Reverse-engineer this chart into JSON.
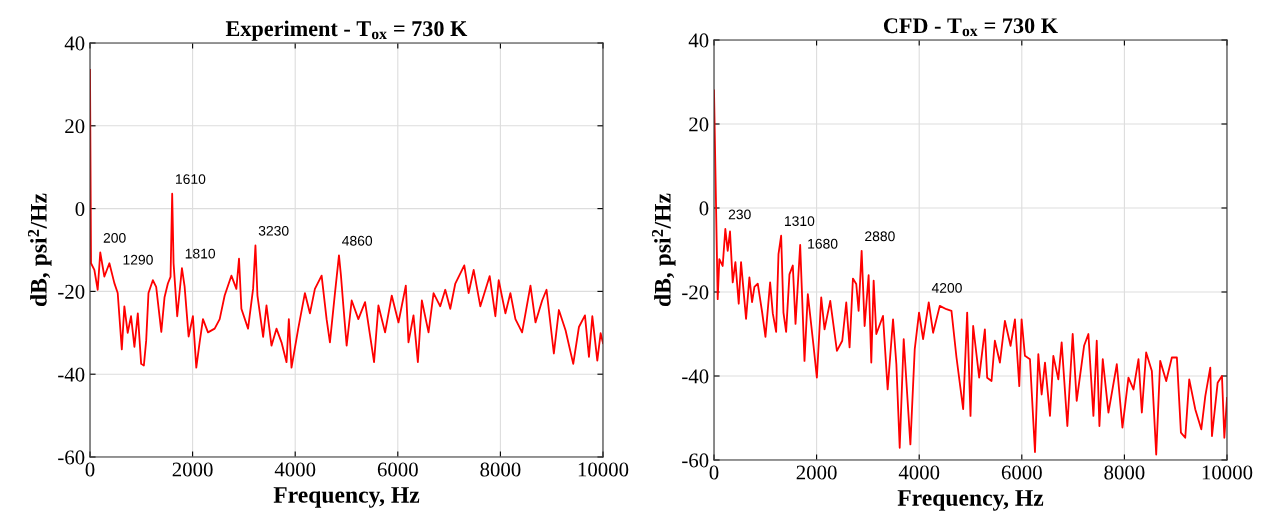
{
  "chart_data": [
    {
      "type": "line",
      "title": "Experiment - T$_{ox}$ = 730 K",
      "xlabel": "Frequency, Hz",
      "ylabel": "dB, psi$^{2}$/Hz",
      "x": [
        0,
        20,
        85,
        150,
        200,
        280,
        378,
        475,
        540,
        573,
        620,
        670,
        735,
        800,
        866,
        932,
        997,
        1050,
        1095,
        1140,
        1225,
        1290,
        1390,
        1453,
        1518,
        1570,
        1602,
        1629,
        1700,
        1792,
        1844,
        1922,
        2006,
        2072,
        2137,
        2202,
        2300,
        2430,
        2528,
        2625,
        2756,
        2853,
        2905,
        2951,
        3081,
        3179,
        3225,
        3264,
        3375,
        3440,
        3538,
        3635,
        3733,
        3831,
        3876,
        3928,
        4059,
        4189,
        4287,
        4384,
        4515,
        4612,
        4677,
        4775,
        4853,
        4892,
        4938,
        5003,
        5101,
        5231,
        5362,
        5459,
        5537,
        5622,
        5752,
        5882,
        6013,
        6156,
        6208,
        6306,
        6391,
        6469,
        6599,
        6697,
        6827,
        6925,
        7023,
        7121,
        7296,
        7381,
        7479,
        7609,
        7791,
        7902,
        7967,
        8098,
        8195,
        8293,
        8423,
        8586,
        8684,
        8814,
        8899,
        9042,
        9140,
        9270,
        9420,
        9531,
        9648,
        9726,
        9792,
        9889,
        9954,
        10000
      ],
      "series": [
        {
          "color": "#ff0000",
          "values": [
            33.5,
            -13.2,
            -14.8,
            -19.6,
            -10.6,
            -16.4,
            -13.2,
            -18,
            -20.4,
            -26,
            -34,
            -23.6,
            -30,
            -26,
            -33.4,
            -25.3,
            -37.5,
            -37.9,
            -31.9,
            -20.4,
            -17.3,
            -18.9,
            -29.8,
            -21.4,
            -18.1,
            -16.5,
            3.6,
            -13.2,
            -26,
            -14.4,
            -18.8,
            -30.9,
            -26,
            -38.4,
            -32.3,
            -26.7,
            -29.9,
            -29,
            -26.7,
            -21,
            -16.2,
            -19.4,
            -12.1,
            -24.2,
            -29,
            -19.4,
            -8.9,
            -21,
            -31,
            -23.4,
            -33.1,
            -29,
            -32.3,
            -37.1,
            -26.7,
            -38.4,
            -29,
            -20.4,
            -25.3,
            -19.4,
            -16.2,
            -26.7,
            -32.3,
            -20.4,
            -11.3,
            -16.2,
            -23.4,
            -33.1,
            -22.2,
            -26.7,
            -22.6,
            -30.6,
            -37.1,
            -23.4,
            -29.9,
            -21,
            -27.5,
            -18.6,
            -32.3,
            -25.8,
            -37.1,
            -22.2,
            -29.9,
            -20.4,
            -23.6,
            -19.6,
            -24.2,
            -18.1,
            -13.7,
            -20.4,
            -14.8,
            -23.6,
            -16.3,
            -26,
            -17.3,
            -25.3,
            -20.4,
            -26.7,
            -29.9,
            -18.6,
            -27.5,
            -22.2,
            -19.6,
            -35,
            -24.5,
            -29.4,
            -37.5,
            -28.6,
            -25.8,
            -35.8,
            -26,
            -36.7,
            -30.1,
            -32.5
          ]
        }
      ],
      "xlim": [
        0,
        10000
      ],
      "xticks": [
        0,
        2000,
        4000,
        6000,
        8000,
        10000
      ],
      "ylim": [
        -60,
        40
      ],
      "yticks": [
        -60,
        -40,
        -20,
        0,
        20,
        40
      ],
      "grid": true,
      "line_style": "solid",
      "marker": "none",
      "annotations": [
        {
          "text": "200",
          "x": 200,
          "y": -10.6
        },
        {
          "text": "1290",
          "x": 1290,
          "y": -18.9
        },
        {
          "text": "1610",
          "x": 1602,
          "y": 3.6
        },
        {
          "text": "1810",
          "x": 1792,
          "y": -14.4
        },
        {
          "text": "3230",
          "x": 3225,
          "y": -8.9
        },
        {
          "text": "4860",
          "x": 4853,
          "y": -11.3
        }
      ]
    },
    {
      "type": "line",
      "title": "CFD - T$_{ox}$ = 730 K",
      "xlabel": "Frequency, Hz",
      "ylabel": "dB, psi$^{2}$/Hz",
      "x": [
        0,
        72,
        104,
        169,
        221,
        267,
        312,
        365,
        417,
        482,
        527,
        625,
        690,
        742,
        788,
        853,
        937,
        1003,
        1094,
        1146,
        1211,
        1257,
        1309,
        1354,
        1406,
        1471,
        1536,
        1589,
        1680,
        1764,
        1829,
        1940,
        2005,
        2090,
        2155,
        2266,
        2396,
        2500,
        2578,
        2643,
        2708,
        2773,
        2819,
        2878,
        2936,
        3014,
        3066,
        3112,
        3164,
        3294,
        3385,
        3490,
        3555,
        3620,
        3698,
        3828,
        3913,
        3997,
        4076,
        4186,
        4271,
        4401,
        4531,
        4629,
        4727,
        4857,
        4935,
        5000,
        5052,
        5169,
        5280,
        5325,
        5410,
        5475,
        5573,
        5671,
        5781,
        5866,
        5951,
        5996,
        6061,
        6159,
        6257,
        6322,
        6387,
        6452,
        6549,
        6615,
        6712,
        6777,
        6888,
        6992,
        7070,
        7214,
        7298,
        7396,
        7461,
        7513,
        7578,
        7689,
        7852,
        7962,
        8079,
        8177,
        8275,
        8340,
        8424,
        8535,
        8620,
        8698,
        8815,
        8925,
        9023,
        9102,
        9186,
        9264,
        9381,
        9499,
        9577,
        9674,
        9707,
        9818,
        9902,
        9948,
        10000
      ],
      "series": [
        {
          "color": "#ff0000",
          "values": [
            28,
            -21.7,
            -12.2,
            -13.8,
            -5,
            -10.2,
            -5.6,
            -17.7,
            -12.9,
            -22.8,
            -12.9,
            -26.4,
            -16.5,
            -22.4,
            -18.8,
            -18,
            -24.7,
            -30.7,
            -17.7,
            -25.1,
            -29.5,
            -11,
            -6.6,
            -24.9,
            -29.5,
            -15.8,
            -13.7,
            -27.6,
            -8.8,
            -36.4,
            -20.5,
            -32.8,
            -40.4,
            -21.3,
            -28.9,
            -22.1,
            -34,
            -31.6,
            -22.5,
            -33.2,
            -16.8,
            -18.1,
            -24.5,
            -10.2,
            -28.1,
            -16,
            -36.8,
            -17.3,
            -30,
            -25.7,
            -43.2,
            -26.5,
            -37.2,
            -57.1,
            -31.2,
            -56.3,
            -33.6,
            -24.9,
            -31.2,
            -22.5,
            -29.7,
            -23.3,
            -24.1,
            -24.5,
            -35.6,
            -47.9,
            -24.9,
            -49.5,
            -28.1,
            -40.4,
            -28.9,
            -40.4,
            -41.2,
            -31.6,
            -36.8,
            -26.9,
            -32.8,
            -26.5,
            -42.4,
            -26.5,
            -35.2,
            -36,
            -58.1,
            -34.8,
            -44.4,
            -36.8,
            -49.5,
            -35.2,
            -40.8,
            -32,
            -51.9,
            -30,
            -45.9,
            -32.8,
            -30,
            -49.5,
            -31.6,
            -51.9,
            -36,
            -48.7,
            -37.2,
            -52.3,
            -40.4,
            -43.2,
            -36,
            -48.7,
            -34.4,
            -38.8,
            -58.7,
            -36.4,
            -41.2,
            -35.6,
            -35.6,
            -53.5,
            -54.7,
            -40.8,
            -47.9,
            -52.7,
            -44.8,
            -38,
            -54.3,
            -41.6,
            -40,
            -54.7,
            -45.2
          ]
        }
      ],
      "xlim": [
        0,
        10000
      ],
      "xticks": [
        0,
        2000,
        4000,
        6000,
        8000,
        10000
      ],
      "ylim": [
        -60,
        40
      ],
      "yticks": [
        -60,
        -40,
        -20,
        0,
        20,
        40
      ],
      "grid": true,
      "line_style": "solid",
      "marker": "none",
      "annotations": [
        {
          "text": "230",
          "x": 221,
          "y": -5
        },
        {
          "text": "1310",
          "x": 1309,
          "y": -6.6
        },
        {
          "text": "1680",
          "x": 1680,
          "y": -8.8
        },
        {
          "text": "2880",
          "x": 2878,
          "y": -10.2
        },
        {
          "text": "4200",
          "x": 4186,
          "y": -22.5
        }
      ]
    }
  ]
}
